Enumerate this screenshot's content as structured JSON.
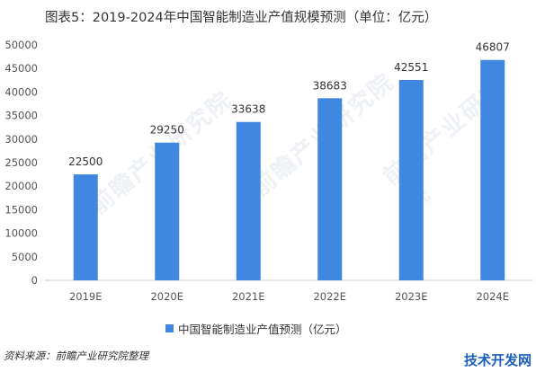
{
  "title": "图表5：2019-2024年中国智能制造业产值规模预测（单位：亿元）",
  "source": "资料来源：前瞻产业研究院整理",
  "watermark": "前瞻产业研究院",
  "site_badge": "技术开发网",
  "colors": {
    "bar": "#3f87e0",
    "axis": "#cccccc",
    "tick_text": "#555555",
    "label_text": "#333333"
  },
  "chart_data": {
    "type": "bar",
    "categories": [
      "2019E",
      "2020E",
      "2021E",
      "2022E",
      "2023E",
      "2024E"
    ],
    "series": [
      {
        "name": "中国智能制造业产值预测（亿元）",
        "values": [
          22500,
          29250,
          33638,
          38683,
          42551,
          46807
        ]
      }
    ],
    "yticks": [
      0,
      5000,
      10000,
      15000,
      20000,
      25000,
      30000,
      35000,
      40000,
      45000,
      50000
    ],
    "ylim": [
      0,
      50000
    ],
    "grid": false,
    "legend": "bottom-center",
    "data_labels": true
  }
}
